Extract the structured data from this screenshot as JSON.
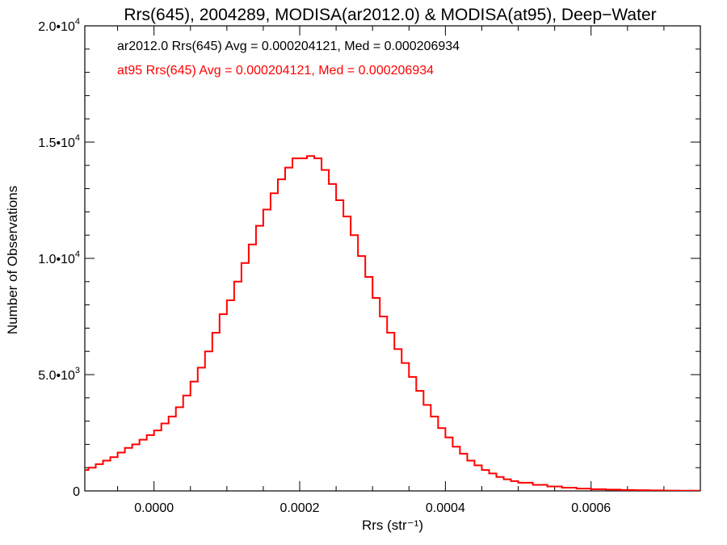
{
  "chart_data": {
    "type": "line",
    "title": "Rrs(645), 2004289, MODISA(ar2012.0) & MODISA(at95), Deep−Water",
    "xlabel": "Rrs (str⁻¹)",
    "ylabel": "Number of Observations",
    "xlim": [
      -9.5e-05,
      0.00075
    ],
    "ylim": [
      0,
      20000
    ],
    "x_ticks": [
      0.0,
      0.0002,
      0.0004,
      0.0006
    ],
    "x_tick_labels": [
      "0.0000",
      "0.0002",
      "0.0004",
      "0.0006"
    ],
    "y_ticks": [
      0,
      5000,
      10000,
      15000,
      20000
    ],
    "y_tick_labels": [
      {
        "base": "0",
        "exp": ""
      },
      {
        "base": "5.0•10",
        "exp": "3"
      },
      {
        "base": "1.0•10",
        "exp": "4"
      },
      {
        "base": "1.5•10",
        "exp": "4"
      },
      {
        "base": "2.0•10",
        "exp": "4"
      }
    ],
    "grid": false,
    "annotations": [
      {
        "text": "ar2012.0 Rrs(645) Avg = 0.000204121, Med = 0.000206934",
        "color": "#000000"
      },
      {
        "text": "at95 Rrs(645) Avg = 0.000204121, Med = 0.000206934",
        "color": "#ff0000"
      }
    ],
    "series": [
      {
        "color": "#ff0000",
        "style": "step",
        "x": [
          -0.0001,
          -9e-05,
          -8e-05,
          -7e-05,
          -6e-05,
          -5e-05,
          -4e-05,
          -3e-05,
          -2e-05,
          -1e-05,
          0.0,
          1e-05,
          2e-05,
          3e-05,
          4e-05,
          5e-05,
          6e-05,
          7e-05,
          8e-05,
          9e-05,
          0.0001,
          0.00011,
          0.00012,
          0.00013,
          0.00014,
          0.00015,
          0.00016,
          0.00017,
          0.00018,
          0.00019,
          0.0002,
          0.00021,
          0.00022,
          0.00023,
          0.00024,
          0.00025,
          0.00026,
          0.00027,
          0.00028,
          0.00029,
          0.0003,
          0.00031,
          0.00032,
          0.00033,
          0.00034,
          0.00035,
          0.00036,
          0.00037,
          0.00038,
          0.00039,
          0.0004,
          0.00041,
          0.00042,
          0.00043,
          0.00044,
          0.00045,
          0.00046,
          0.00047,
          0.00048,
          0.00049,
          0.0005,
          0.00052,
          0.00054,
          0.00056,
          0.00058,
          0.0006,
          0.00062,
          0.00064,
          0.00066,
          0.00068,
          0.0007,
          0.00072,
          0.00075
        ],
        "values": [
          900,
          1000,
          1150,
          1300,
          1450,
          1650,
          1850,
          2000,
          2200,
          2400,
          2600,
          2900,
          3200,
          3600,
          4100,
          4700,
          5300,
          6000,
          6800,
          7600,
          8200,
          9000,
          9800,
          10600,
          11400,
          12100,
          12800,
          13400,
          13900,
          14300,
          14300,
          14400,
          14300,
          13800,
          13200,
          12500,
          11800,
          11000,
          10100,
          9200,
          8300,
          7500,
          6800,
          6100,
          5500,
          4900,
          4300,
          3700,
          3200,
          2700,
          2300,
          1900,
          1600,
          1300,
          1100,
          900,
          750,
          600,
          500,
          420,
          350,
          260,
          190,
          140,
          100,
          75,
          55,
          40,
          30,
          20,
          15,
          10,
          5
        ]
      }
    ]
  }
}
